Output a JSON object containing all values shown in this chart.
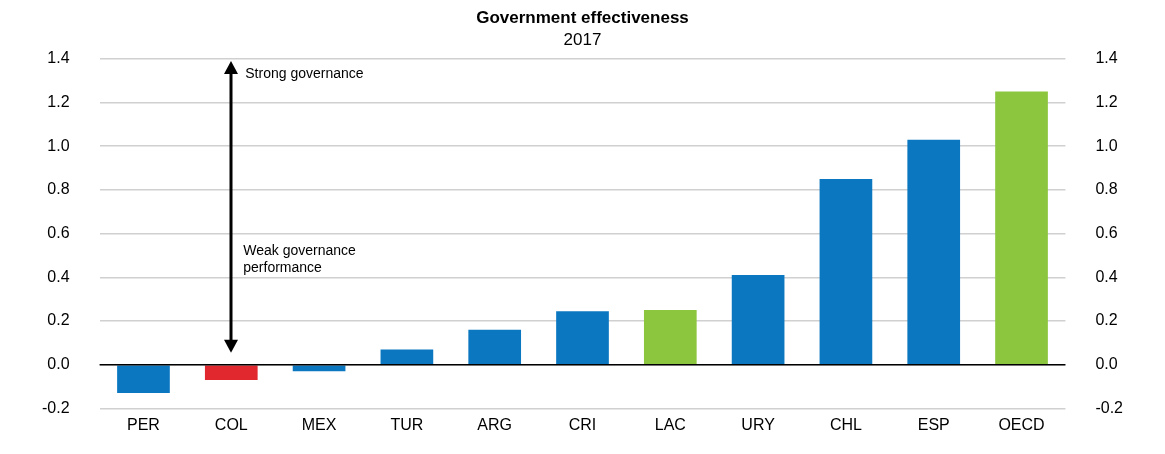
{
  "chart_data": {
    "type": "bar",
    "title": "Government effectiveness",
    "subtitle": "2017",
    "categories": [
      "PER",
      "COL",
      "MEX",
      "TUR",
      "ARG",
      "CRI",
      "LAC",
      "URY",
      "CHL",
      "ESP",
      "OECD"
    ],
    "values": [
      -0.13,
      -0.07,
      -0.03,
      0.07,
      0.16,
      0.245,
      0.25,
      0.41,
      0.85,
      1.03,
      1.25
    ],
    "colors": [
      "#0a77c0",
      "#e0282e",
      "#0a77c0",
      "#0a77c0",
      "#0a77c0",
      "#0a77c0",
      "#8cc63f",
      "#0a77c0",
      "#0a77c0",
      "#0a77c0",
      "#8cc63f"
    ],
    "ylim": [
      -0.2,
      1.4
    ],
    "yticks": [
      {
        "value": -0.2,
        "label": "-0.2"
      },
      {
        "value": 0,
        "label": "0.0"
      },
      {
        "value": 0.2,
        "label": "0.2"
      },
      {
        "value": 0.4,
        "label": "0.4"
      },
      {
        "value": 0.6,
        "label": "0.6"
      },
      {
        "value": 0.8,
        "label": "0.8"
      },
      {
        "value": 1,
        "label": "1.0"
      },
      {
        "value": 1.2,
        "label": "1.2"
      },
      {
        "value": 1.4,
        "label": "1.4"
      }
    ],
    "y2lim": [
      -0.2,
      1.4
    ],
    "y2ticks": [
      {
        "value": -0.2,
        "label": "-0.2"
      },
      {
        "value": 0,
        "label": "0.0"
      },
      {
        "value": 0.2,
        "label": "0.2"
      },
      {
        "value": 0.4,
        "label": "0.4"
      },
      {
        "value": 0.6,
        "label": "0.6"
      },
      {
        "value": 0.8,
        "label": "0.8"
      },
      {
        "value": 1,
        "label": "1.0"
      },
      {
        "value": 1.2,
        "label": "1.2"
      },
      {
        "value": 1.4,
        "label": "1.4"
      }
    ],
    "annotations": [
      "Strong governance",
      "Weak governance performance"
    ],
    "grid": "y",
    "legend": false
  }
}
